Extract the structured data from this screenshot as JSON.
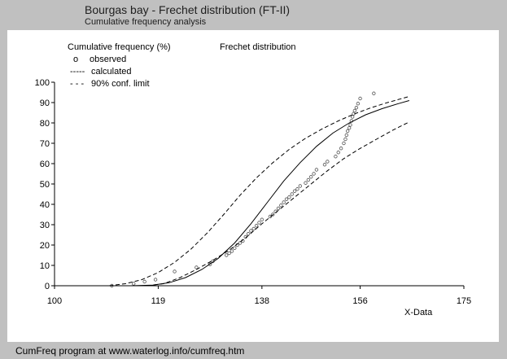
{
  "header": {
    "title": "Bourgas bay - Frechet distribution (FT-II)",
    "subtitle": "Cumulative frequency analysis"
  },
  "footer": {
    "text": "CumFreq program at www.waterlog.info/cumfreq.htm"
  },
  "chart_data": {
    "type": "scatter",
    "ylabel": "Cumulative frequency (%)",
    "xlabel": "X-Data",
    "annotation": "Frechet distribution",
    "xlim": [
      100,
      175
    ],
    "ylim": [
      0,
      100
    ],
    "xticks": [
      100,
      119,
      138,
      156,
      175
    ],
    "yticks": [
      0,
      10,
      20,
      30,
      40,
      50,
      60,
      70,
      80,
      90,
      100
    ],
    "grid": false,
    "legend": {
      "placement": "top-left",
      "entries": [
        {
          "symbol": "o",
          "label": "observed"
        },
        {
          "symbol": "-----",
          "label": "calculated"
        },
        {
          "symbol": "- - -",
          "label": "90% conf. limit"
        }
      ]
    },
    "series": [
      {
        "name": "observed",
        "kind": "points",
        "x": [
          110.5,
          114.5,
          116.5,
          118.5,
          122,
          126,
          128.5,
          129,
          131.5,
          132,
          132.5,
          133,
          133.5,
          134,
          134.5,
          135,
          135.5,
          136,
          136.5,
          137,
          137.5,
          138,
          139.5,
          140,
          140.5,
          141,
          141.5,
          142,
          142.5,
          143,
          143.5,
          144,
          144.5,
          145,
          146,
          146.5,
          147,
          147.5,
          148,
          149.5,
          150,
          151.5,
          152,
          152.5,
          153,
          153.3,
          153.5,
          153.7,
          154,
          154.2,
          154.4,
          154.6,
          154.8,
          155,
          155.3,
          155.6,
          156,
          158.5
        ],
        "y": [
          0,
          1,
          2,
          3,
          7,
          9,
          10.5,
          12,
          15,
          16,
          17,
          18.5,
          20,
          21,
          22,
          24,
          25.5,
          27,
          28,
          29.5,
          31,
          32.5,
          34,
          35,
          36.5,
          38,
          39.5,
          41,
          42.5,
          43.5,
          45,
          46.5,
          47.5,
          49,
          50.5,
          52,
          53.5,
          55,
          57,
          59.5,
          61,
          63.5,
          65.5,
          67.5,
          70,
          72,
          74,
          76,
          77.5,
          79,
          81,
          83,
          84.5,
          86,
          87.5,
          89.5,
          92,
          94.5
        ]
      },
      {
        "name": "calculated",
        "kind": "line",
        "x": [
          114,
          118,
          121,
          124,
          127,
          130,
          133,
          136,
          139,
          142,
          145,
          148,
          151,
          154,
          157,
          160,
          163,
          165
        ],
        "y": [
          0,
          0.3,
          1.5,
          4,
          8,
          13.5,
          21,
          30.5,
          41,
          51.5,
          60.5,
          68.5,
          75,
          80,
          84,
          87,
          89.5,
          91
        ]
      },
      {
        "name": "90% conf. limit (upper)",
        "kind": "line",
        "x": [
          110,
          113,
          116,
          119,
          122,
          125,
          128,
          131,
          134,
          137,
          140,
          143,
          146,
          149,
          152,
          155,
          158,
          161,
          165
        ],
        "y": [
          0,
          1,
          3,
          6.5,
          11.5,
          18,
          26,
          35,
          44.5,
          53,
          60.5,
          67,
          72.5,
          77,
          81,
          84.5,
          87.5,
          90,
          93
        ]
      },
      {
        "name": "90% conf. limit (lower)",
        "kind": "line",
        "x": [
          117,
          120,
          123,
          126,
          129,
          132,
          135,
          138,
          141,
          144,
          147,
          150,
          153,
          156,
          159,
          162,
          165
        ],
        "y": [
          0,
          1,
          4,
          8,
          12.5,
          17.5,
          23.5,
          30.5,
          37,
          43.5,
          50,
          56.5,
          62.5,
          67.5,
          72,
          76.5,
          80.5
        ]
      }
    ]
  }
}
